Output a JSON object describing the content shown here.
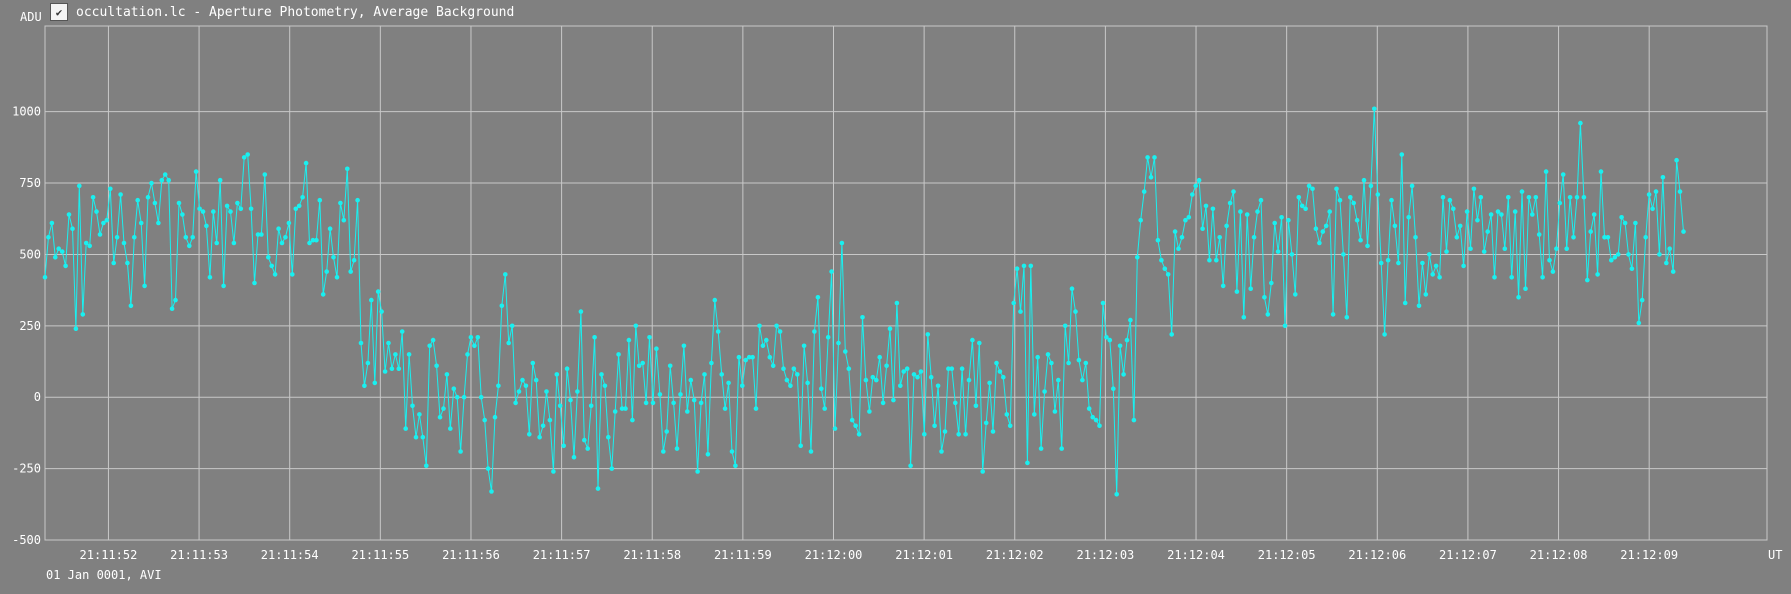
{
  "window": {
    "title": "occultation.lc - Aperture Photometry, Average Background",
    "icon": "lightcurve-app-icon"
  },
  "footer_text": "01 Jan 0001, AVI",
  "colors": {
    "background": "#808080",
    "grid": "#c8c8c8",
    "series": "#19f0f0",
    "text": "#ffffff"
  },
  "chart_data": {
    "type": "line",
    "title": "occultation.lc - Aperture Photometry, Average Background",
    "ylabel": "ADU",
    "xlabel": "UT",
    "ylim": [
      -500,
      1300
    ],
    "yticks": [
      -500,
      -250,
      0,
      250,
      500,
      750,
      1000
    ],
    "xlim": [
      51.3,
      70.3
    ],
    "xticks": [
      {
        "t": 52,
        "label": "21:11:52"
      },
      {
        "t": 53,
        "label": "21:11:53"
      },
      {
        "t": 54,
        "label": "21:11:54"
      },
      {
        "t": 55,
        "label": "21:11:55"
      },
      {
        "t": 56,
        "label": "21:11:56"
      },
      {
        "t": 57,
        "label": "21:11:57"
      },
      {
        "t": 58,
        "label": "21:11:58"
      },
      {
        "t": 59,
        "label": "21:11:59"
      },
      {
        "t": 60,
        "label": "21:12:00"
      },
      {
        "t": 61,
        "label": "21:12:01"
      },
      {
        "t": 62,
        "label": "21:12:02"
      },
      {
        "t": 63,
        "label": "21:12:03"
      },
      {
        "t": 64,
        "label": "21:12:04"
      },
      {
        "t": 65,
        "label": "21:12:05"
      },
      {
        "t": 66,
        "label": "21:12:06"
      },
      {
        "t": 67,
        "label": "21:12:07"
      },
      {
        "t": 68,
        "label": "21:12:08"
      },
      {
        "t": 69,
        "label": "21:12:09"
      }
    ],
    "grid": true,
    "series": [
      {
        "t_start": 51.3,
        "t_step": 0.0379,
        "markers": true,
        "values": [
          420,
          560,
          610,
          490,
          520,
          510,
          460,
          640,
          590,
          240,
          740,
          290,
          540,
          530,
          700,
          650,
          570,
          610,
          620,
          730,
          470,
          560,
          710,
          540,
          470,
          320,
          560,
          690,
          610,
          390,
          700,
          750,
          680,
          610,
          760,
          780,
          760,
          310,
          340,
          680,
          640,
          560,
          530,
          560,
          790,
          660,
          650,
          600,
          420,
          650,
          540,
          760,
          390,
          670,
          650,
          540,
          680,
          660,
          840,
          850,
          660,
          400,
          570,
          570,
          780,
          490,
          460,
          430,
          590,
          540,
          560,
          610,
          430,
          660,
          670,
          700,
          820,
          540,
          550,
          550,
          690,
          360,
          440,
          590,
          490,
          420,
          680,
          620,
          800,
          440,
          480,
          690,
          190,
          40,
          120,
          340,
          50,
          370,
          300,
          90,
          190,
          100,
          150,
          100,
          230,
          -110,
          150,
          -30,
          -140,
          -60,
          -140,
          -240,
          180,
          200,
          110,
          -70,
          -40,
          80,
          -110,
          30,
          0,
          -190,
          0,
          150,
          210,
          180,
          210,
          0,
          -80,
          -250,
          -330,
          -70,
          40,
          320,
          430,
          190,
          250,
          -20,
          20,
          60,
          40,
          -130,
          120,
          60,
          -140,
          -100,
          20,
          -80,
          -260,
          80,
          -30,
          -170,
          100,
          -10,
          -210,
          20,
          300,
          -150,
          -180,
          -30,
          210,
          -320,
          80,
          40,
          -140,
          -250,
          -50,
          150,
          -40,
          -40,
          200,
          -80,
          250,
          110,
          120,
          -20,
          210,
          -20,
          170,
          10,
          -190,
          -120,
          110,
          -20,
          -180,
          10,
          180,
          -50,
          60,
          -10,
          -260,
          -20,
          80,
          -200,
          120,
          340,
          230,
          80,
          -40,
          50,
          -190,
          -240,
          140,
          40,
          130,
          140,
          140,
          -40,
          250,
          180,
          200,
          140,
          110,
          250,
          230,
          100,
          60,
          40,
          100,
          80,
          -170,
          180,
          50,
          -190,
          230,
          350,
          30,
          -40,
          210,
          440,
          -110,
          190,
          540,
          160,
          100,
          -80,
          -100,
          -130,
          280,
          60,
          -50,
          70,
          60,
          140,
          -20,
          110,
          240,
          -10,
          330,
          40,
          90,
          100,
          -240,
          80,
          70,
          90,
          -130,
          220,
          70,
          -100,
          40,
          -190,
          -120,
          100,
          100,
          -20,
          -130,
          100,
          -130,
          60,
          200,
          -30,
          190,
          -260,
          -90,
          50,
          -120,
          120,
          90,
          70,
          -60,
          -100,
          330,
          450,
          300,
          460,
          -230,
          460,
          -60,
          140,
          -180,
          20,
          150,
          120,
          -50,
          60,
          -180,
          250,
          120,
          380,
          300,
          130,
          60,
          120,
          -40,
          -70,
          -80,
          -100,
          330,
          210,
          200,
          30,
          -340,
          180,
          80,
          200,
          270,
          -80,
          490,
          620,
          720,
          840,
          770,
          840,
          550,
          480,
          450,
          430,
          220,
          580,
          520,
          560,
          620,
          630,
          710,
          740,
          760,
          590,
          670,
          480,
          660,
          480,
          560,
          390,
          600,
          680,
          720,
          370,
          650,
          280,
          640,
          380,
          560,
          650,
          690,
          350,
          290,
          400,
          610,
          510,
          630,
          250,
          620,
          500,
          360,
          700,
          670,
          660,
          740,
          730,
          590,
          540,
          580,
          600,
          650,
          290,
          730,
          690,
          500,
          280,
          700,
          680,
          620,
          550,
          760,
          530,
          740,
          1010,
          710,
          470,
          220,
          480,
          690,
          600,
          470,
          850,
          330,
          630,
          740,
          560,
          320,
          470,
          360,
          500,
          430,
          460,
          420,
          700,
          510,
          690,
          660,
          560,
          600,
          460,
          650,
          520,
          730,
          620,
          700,
          510,
          580,
          640,
          420,
          650,
          640,
          520,
          700,
          420,
          650,
          350,
          720,
          380,
          700,
          640,
          700,
          570,
          420,
          790,
          480,
          440,
          520,
          680,
          780,
          520,
          700,
          560,
          700,
          960,
          700,
          410,
          580,
          640,
          430,
          790,
          560,
          560,
          480,
          490,
          500,
          630,
          610,
          500,
          450,
          610,
          260,
          340,
          560,
          710,
          660,
          720,
          500,
          770,
          470,
          520,
          440,
          830,
          720,
          580
        ]
      }
    ]
  }
}
